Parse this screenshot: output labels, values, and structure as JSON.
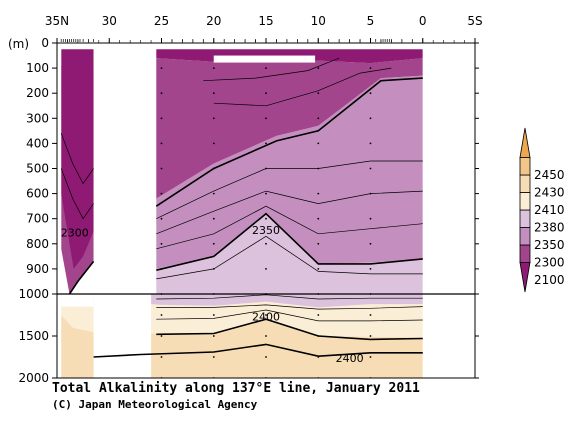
{
  "chart_data": {
    "type": "contour",
    "title": "Total Alkalinity along 137°E line, January 2011",
    "credit": "(C) Japan Meteorological Agency",
    "y_unit_label": "(m)",
    "x_ticks": [
      {
        "lat": 35,
        "label": "35N"
      },
      {
        "lat": 30,
        "label": "30"
      },
      {
        "lat": 25,
        "label": "25"
      },
      {
        "lat": 20,
        "label": "20"
      },
      {
        "lat": 15,
        "label": "15"
      },
      {
        "lat": 10,
        "label": "10"
      },
      {
        "lat": 5,
        "label": "5"
      },
      {
        "lat": 0,
        "label": "0"
      },
      {
        "lat": -5,
        "label": "5S"
      }
    ],
    "xlim": [
      35,
      -5
    ],
    "y_upper": {
      "range": [
        0,
        1000
      ],
      "ticks": [
        0,
        100,
        200,
        300,
        400,
        500,
        600,
        700,
        800,
        900,
        1000
      ]
    },
    "y_lower": {
      "range": [
        1000,
        2000
      ],
      "ticks": [
        1500,
        2000
      ]
    },
    "station_lats": [
      34.6,
      34.4,
      34.2,
      34.0,
      33.8,
      33.6,
      33.4,
      33.2,
      33.0,
      32.8,
      32.5,
      32.0,
      31.5,
      25.0,
      24.0,
      23.0,
      22.0,
      21.0,
      20.0,
      19.0,
      18.0,
      17.0,
      16.0,
      15.0,
      14.0,
      13.0,
      12.0,
      11.0,
      10.0,
      9.0,
      8.0,
      7.0,
      6.0,
      5.0,
      4.5,
      4.0,
      3.8,
      3.6,
      3.4,
      3.2,
      3.0,
      2.0,
      1.0,
      0.0
    ],
    "no_data_bands": [
      {
        "lat_from": 31.5,
        "lat_to": 29.5
      },
      {
        "lat_from": 29.5,
        "lat_to": 26.0
      }
    ],
    "colorbar": {
      "levels": [
        2100,
        2300,
        2350,
        2380,
        2410,
        2430,
        2450
      ],
      "colors": [
        "#8e1a73",
        "#a3458c",
        "#c48fbf",
        "#ddc2dd",
        "#fbeed6",
        "#f7ddb5",
        "#f3c58a",
        "#eba84e"
      ]
    },
    "contour_labels": [
      {
        "text": "2300",
        "lat": 33.3,
        "depth": 755
      },
      {
        "text": "2350",
        "lat": 15.0,
        "depth": 745
      },
      {
        "text": "2400",
        "lat": 15.0,
        "depth": 1270
      },
      {
        "text": "2400",
        "lat": 7.0,
        "depth": 1760
      }
    ]
  }
}
